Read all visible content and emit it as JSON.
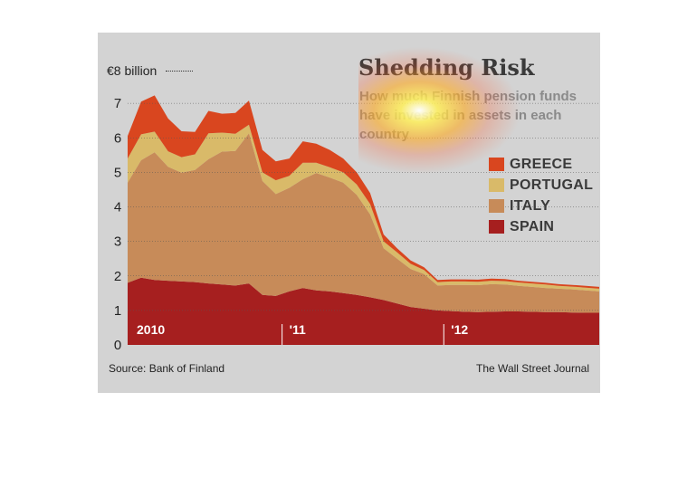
{
  "figure": {
    "title": "Shedding Risk",
    "subtitle": "How much Finnish pension funds have invested in assets in each country",
    "unit_label": "€8 billion",
    "source": "Source: Bank of Finland",
    "credit": "The Wall Street Journal"
  },
  "legend": [
    {
      "label": "GREECE",
      "color": "#d9461f"
    },
    {
      "label": "PORTUGAL",
      "color": "#d9ba69"
    },
    {
      "label": "ITALY",
      "color": "#c78b59"
    },
    {
      "label": "SPAIN",
      "color": "#a61f1f"
    }
  ],
  "chart_data": {
    "type": "area",
    "stacked": true,
    "title": "Shedding Risk",
    "subtitle": "How much Finnish pension funds have invested in assets in each country",
    "ylabel": "€ billion",
    "ylim": [
      0,
      8
    ],
    "yticks": [
      0,
      1,
      2,
      3,
      4,
      5,
      6,
      7
    ],
    "year_labels": [
      {
        "label": "2010",
        "x": 0
      },
      {
        "label": "'11",
        "x": 12
      },
      {
        "label": "'12",
        "x": 24
      }
    ],
    "x": [
      0,
      1,
      2,
      3,
      4,
      5,
      6,
      7,
      8,
      9,
      10,
      11,
      12,
      13,
      14,
      15,
      16,
      17,
      18,
      19,
      20,
      21,
      22,
      23,
      24,
      25,
      26,
      27,
      28,
      29,
      30,
      31,
      32,
      33,
      34,
      35
    ],
    "series": [
      {
        "name": "SPAIN",
        "color": "#a61f1f",
        "values": [
          1.8,
          1.95,
          1.88,
          1.86,
          1.84,
          1.82,
          1.78,
          1.75,
          1.72,
          1.78,
          1.45,
          1.42,
          1.55,
          1.65,
          1.58,
          1.55,
          1.5,
          1.45,
          1.38,
          1.3,
          1.2,
          1.1,
          1.05,
          1.0,
          0.98,
          0.96,
          0.95,
          0.96,
          0.97,
          0.97,
          0.96,
          0.95,
          0.95,
          0.94,
          0.93,
          0.93
        ]
      },
      {
        "name": "ITALY",
        "color": "#c78b59",
        "values": [
          2.9,
          3.4,
          3.7,
          3.3,
          3.15,
          3.25,
          3.6,
          3.85,
          3.9,
          4.35,
          3.3,
          2.95,
          3.0,
          3.15,
          3.4,
          3.3,
          3.2,
          2.9,
          2.4,
          1.5,
          1.3,
          1.1,
          1.0,
          0.72,
          0.76,
          0.78,
          0.78,
          0.8,
          0.78,
          0.74,
          0.72,
          0.7,
          0.68,
          0.67,
          0.65,
          0.62
        ]
      },
      {
        "name": "PORTUGAL",
        "color": "#d9ba69",
        "values": [
          0.7,
          0.75,
          0.6,
          0.45,
          0.45,
          0.45,
          0.75,
          0.55,
          0.5,
          0.25,
          0.25,
          0.4,
          0.35,
          0.48,
          0.3,
          0.3,
          0.3,
          0.3,
          0.3,
          0.2,
          0.18,
          0.15,
          0.12,
          0.1,
          0.1,
          0.1,
          0.1,
          0.1,
          0.1,
          0.1,
          0.1,
          0.1,
          0.08,
          0.08,
          0.08,
          0.08
        ]
      },
      {
        "name": "GREECE",
        "color": "#d9461f",
        "values": [
          0.65,
          0.95,
          1.05,
          0.95,
          0.75,
          0.65,
          0.65,
          0.55,
          0.6,
          0.7,
          0.65,
          0.55,
          0.5,
          0.62,
          0.55,
          0.5,
          0.4,
          0.35,
          0.32,
          0.2,
          0.12,
          0.1,
          0.08,
          0.06,
          0.06,
          0.06,
          0.06,
          0.06,
          0.06,
          0.05,
          0.05,
          0.05,
          0.05,
          0.05,
          0.05,
          0.05
        ]
      }
    ]
  }
}
